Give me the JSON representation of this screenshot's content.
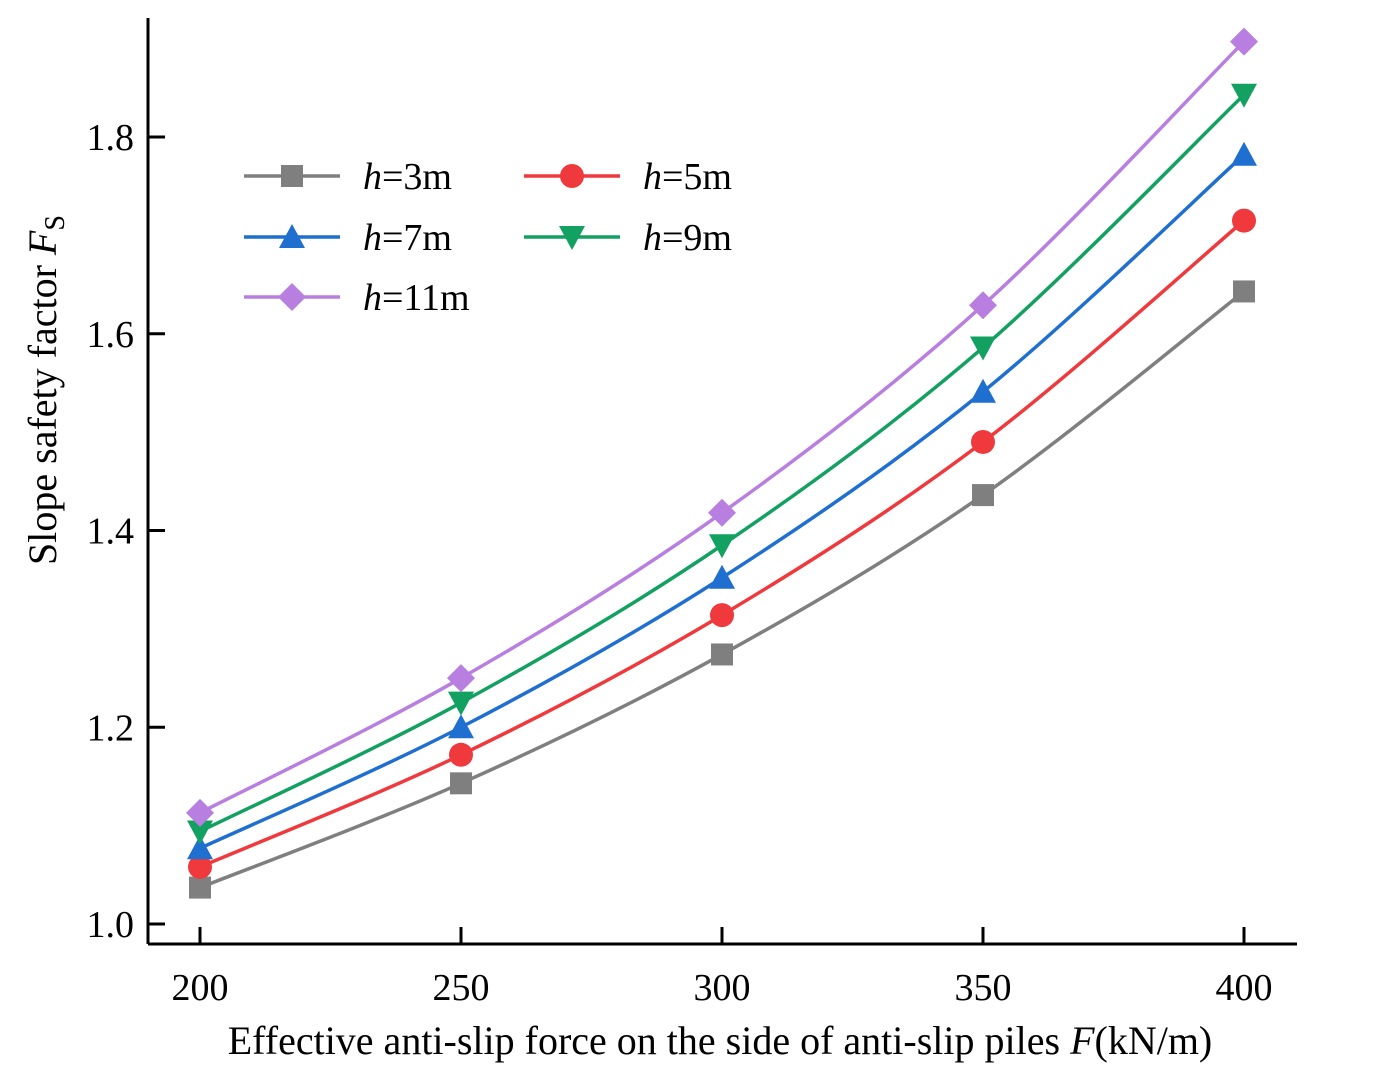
{
  "chart_data": {
    "type": "line",
    "x": [
      200,
      250,
      300,
      350,
      400
    ],
    "xticks": [
      "200",
      "250",
      "300",
      "350",
      "400"
    ],
    "yticks": [
      "1.0",
      "1.2",
      "1.4",
      "1.6",
      "1.8"
    ],
    "xlim": [
      190,
      410
    ],
    "ylim": [
      0.99,
      1.92
    ],
    "grid": false,
    "legend_position": "top-left",
    "xlabel": {
      "prefix": "Effective anti-slip force on the side of anti-slip piles  ",
      "symbol": "F",
      "unit": "(kN/m)"
    },
    "ylabel": {
      "prefix": "Slope safety factor  ",
      "symbol": "F",
      "subscript": "S"
    },
    "series": [
      {
        "name": "h=3m",
        "var": "h",
        "label_rest": "=3m",
        "color": "#7f7f7f",
        "marker": "square",
        "values": [
          1.037,
          1.143,
          1.274,
          1.436,
          1.643
        ]
      },
      {
        "name": "h=5m",
        "var": "h",
        "label_rest": "=5m",
        "color": "#f0393c",
        "marker": "circle",
        "values": [
          1.058,
          1.172,
          1.314,
          1.49,
          1.715
        ]
      },
      {
        "name": "h=7m",
        "var": "h",
        "label_rest": "=7m",
        "color": "#1f6fd1",
        "marker": "triangle-up",
        "values": [
          1.077,
          1.2,
          1.352,
          1.541,
          1.782
        ]
      },
      {
        "name": "h=9m",
        "var": "h",
        "label_rest": "=9m",
        "color": "#12a160",
        "marker": "triangle-down",
        "values": [
          1.094,
          1.225,
          1.385,
          1.586,
          1.843
        ]
      },
      {
        "name": "h=11m",
        "var": "h",
        "label_rest": "=11m",
        "color": "#b87ee0",
        "marker": "diamond",
        "values": [
          1.113,
          1.25,
          1.418,
          1.629,
          1.897
        ]
      }
    ]
  }
}
